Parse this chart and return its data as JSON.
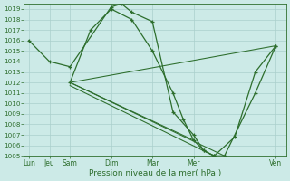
{
  "background_color": "#cceae7",
  "grid_color": "#aacfcc",
  "line_color": "#2d6e2d",
  "xlabel": "Pression niveau de la mer( hPa )",
  "ylim": [
    1005,
    1019.5
  ],
  "yticks": [
    1005,
    1006,
    1007,
    1008,
    1009,
    1010,
    1011,
    1012,
    1013,
    1014,
    1015,
    1016,
    1017,
    1018,
    1019
  ],
  "xtick_labels": [
    "Lun",
    "Jeu",
    "Sam",
    "Dim",
    "Mar",
    "Mer",
    "Ven"
  ],
  "xtick_positions": [
    0,
    2,
    4,
    8,
    12,
    16,
    24
  ],
  "xlim": [
    -0.5,
    25
  ],
  "line1_x": [
    0,
    2,
    4,
    8,
    9,
    10,
    12,
    14,
    16,
    17,
    18,
    19,
    22,
    24
  ],
  "line1_y": [
    1016.0,
    1014.0,
    1013.5,
    1019.2,
    1019.5,
    1018.7,
    1017.8,
    1009.2,
    1007.0,
    1005.5,
    1005.0,
    1005.0,
    1011.0,
    1015.5
  ],
  "line2_x": [
    4,
    6,
    8,
    10,
    12,
    14,
    15,
    16,
    17,
    18,
    20,
    22,
    24
  ],
  "line2_y": [
    1012.0,
    1017.0,
    1019.0,
    1018.0,
    1015.0,
    1011.0,
    1008.5,
    1006.5,
    1005.5,
    1005.0,
    1006.8,
    1013.0,
    1015.5
  ],
  "line3_x": [
    4,
    24
  ],
  "line3_y": [
    1012.0,
    1015.5
  ],
  "line4_x": [
    4,
    16
  ],
  "line4_y": [
    1012.0,
    1006.5
  ],
  "line5_x": [
    4,
    19
  ],
  "line5_y": [
    1012.0,
    1005.0
  ],
  "line6_x": [
    4,
    18
  ],
  "line6_y": [
    1011.7,
    1005.0
  ]
}
